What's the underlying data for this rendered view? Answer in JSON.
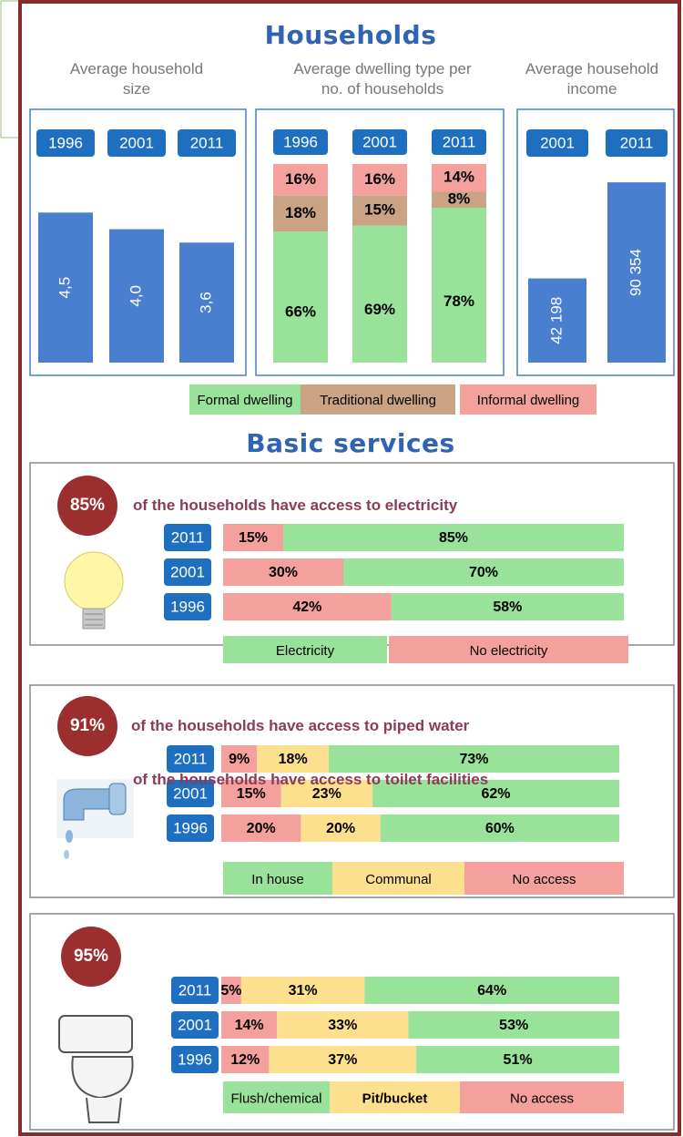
{
  "households": {
    "title": "Households",
    "size": {
      "label": "Average household size",
      "categories": [
        "1996",
        "2001",
        "2011"
      ],
      "values": [
        4.5,
        4.0,
        3.6
      ],
      "value_labels": [
        "4,5",
        "4,0",
        "3,6"
      ],
      "color": "#4a7fd0"
    },
    "dwelling": {
      "label": "Average dwelling type per no. of households",
      "categories": [
        "1996",
        "2001",
        "2011"
      ],
      "series": [
        {
          "name": "Formal dwelling",
          "color": "#98e29a",
          "values": [
            66,
            69,
            78
          ],
          "value_labels": [
            "66%",
            "69%",
            "78%"
          ]
        },
        {
          "name": "Traditional dwelling",
          "color": "#c9a384",
          "values": [
            18,
            15,
            8
          ],
          "value_labels": [
            "18%",
            "15%",
            "8%"
          ]
        },
        {
          "name": "Informal dwelling",
          "color": "#f4a09c",
          "values": [
            16,
            16,
            14
          ],
          "value_labels": [
            "16%",
            "16%",
            "14%"
          ]
        }
      ]
    },
    "income": {
      "label": "Average household income",
      "categories": [
        "2001",
        "2011"
      ],
      "values": [
        42198,
        90354
      ],
      "value_labels": [
        "42 198",
        "90 354"
      ],
      "color": "#4a7fd0"
    }
  },
  "services": {
    "title": "Basic services",
    "panels": [
      {
        "headline": {
          "value": 85,
          "label": "85%"
        },
        "text": "of the households have access to electricity",
        "categories": [
          "2011",
          "2001",
          "1996"
        ],
        "series": [
          {
            "name": "Electricity",
            "color": "#98e29a",
            "values": [
              85,
              70,
              58
            ],
            "value_labels": [
              "85%",
              "70%",
              "58%"
            ]
          },
          {
            "name": "No  electricity",
            "color": "#f4a09c",
            "values": [
              15,
              30,
              42
            ],
            "value_labels": [
              "15%",
              "30%",
              "42%"
            ]
          }
        ]
      },
      {
        "headline": {
          "value": 91,
          "label": "91%"
        },
        "text": "of the households have access to piped water",
        "categories": [
          "2011",
          "2001",
          "1996"
        ],
        "series": [
          {
            "name": "In house",
            "color": "#98e29a",
            "values": [
              73,
              62,
              60
            ],
            "value_labels": [
              "73%",
              "62%",
              "60%"
            ]
          },
          {
            "name": "Communal",
            "color": "#fde08e",
            "values": [
              18,
              23,
              20
            ],
            "value_labels": [
              "18%",
              "23%",
              "20%"
            ]
          },
          {
            "name": "No  access",
            "color": "#f4a09c",
            "values": [
              9,
              15,
              20
            ],
            "value_labels": [
              "9%",
              "15%",
              "20%"
            ]
          }
        ]
      },
      {
        "headline": {
          "value": 95,
          "label": "95%"
        },
        "text": "of the households have access to toilet facilities",
        "categories": [
          "2011",
          "2001",
          "1996"
        ],
        "series": [
          {
            "name": "Flush/chemical",
            "color": "#98e29a",
            "values": [
              64,
              53,
              51
            ],
            "value_labels": [
              "64%",
              "53%",
              "51%"
            ]
          },
          {
            "name": "Pit/bucket",
            "color": "#fde08e",
            "values": [
              31,
              33,
              37
            ],
            "value_labels": [
              "31%",
              "33%",
              "37%"
            ]
          },
          {
            "name": "No  access",
            "color": "#f4a09c",
            "values": [
              5,
              14,
              12
            ],
            "value_labels": [
              "5%",
              "14%",
              "12%"
            ]
          }
        ]
      }
    ]
  }
}
